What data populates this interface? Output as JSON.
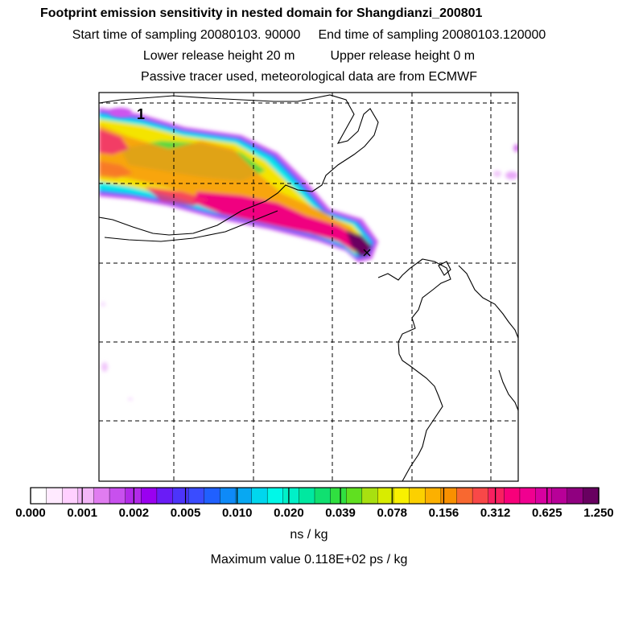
{
  "header": {
    "title": "Footprint emission sensitivity in nested domain for Shangdianzi_200801",
    "start_label": "Start time of sampling 20080103. 90000",
    "end_label": "End time of sampling 20080103.120000",
    "lower_label": "Lower release height   20 m",
    "upper_label": "Upper release height    0 m",
    "tracer_label": "Passive tracer used, meteorological data are from ECMWF"
  },
  "map": {
    "release_marker": "1"
  },
  "colorbar": {
    "tick_labels": [
      "0.000",
      "0.001",
      "0.002",
      "0.005",
      "0.010",
      "0.020",
      "0.039",
      "0.078",
      "0.156",
      "0.312",
      "0.625",
      "1.250"
    ],
    "colors": [
      "#ffffff",
      "#ffeaff",
      "#ffd0ff",
      "#f3b6f8",
      "#e07cf0",
      "#c850ee",
      "#b22ae8",
      "#9a00f0",
      "#6a1cf6",
      "#4c34fa",
      "#3a4cff",
      "#2060ff",
      "#0e8af8",
      "#08a8f2",
      "#00d6ee",
      "#00f8e8",
      "#00f0c8",
      "#00e8a0",
      "#10e070",
      "#30e040",
      "#60e020",
      "#a8e010",
      "#d8ec00",
      "#f8f000",
      "#fcd000",
      "#fcb000",
      "#f89000",
      "#f86830",
      "#f84848",
      "#f82060",
      "#f8007a",
      "#f00090",
      "#d800a0",
      "#b80098",
      "#900080",
      "#680060"
    ],
    "unit": "ns / kg"
  },
  "footer": {
    "max_value": "Maximum value  0.118E+02 ps / kg"
  }
}
